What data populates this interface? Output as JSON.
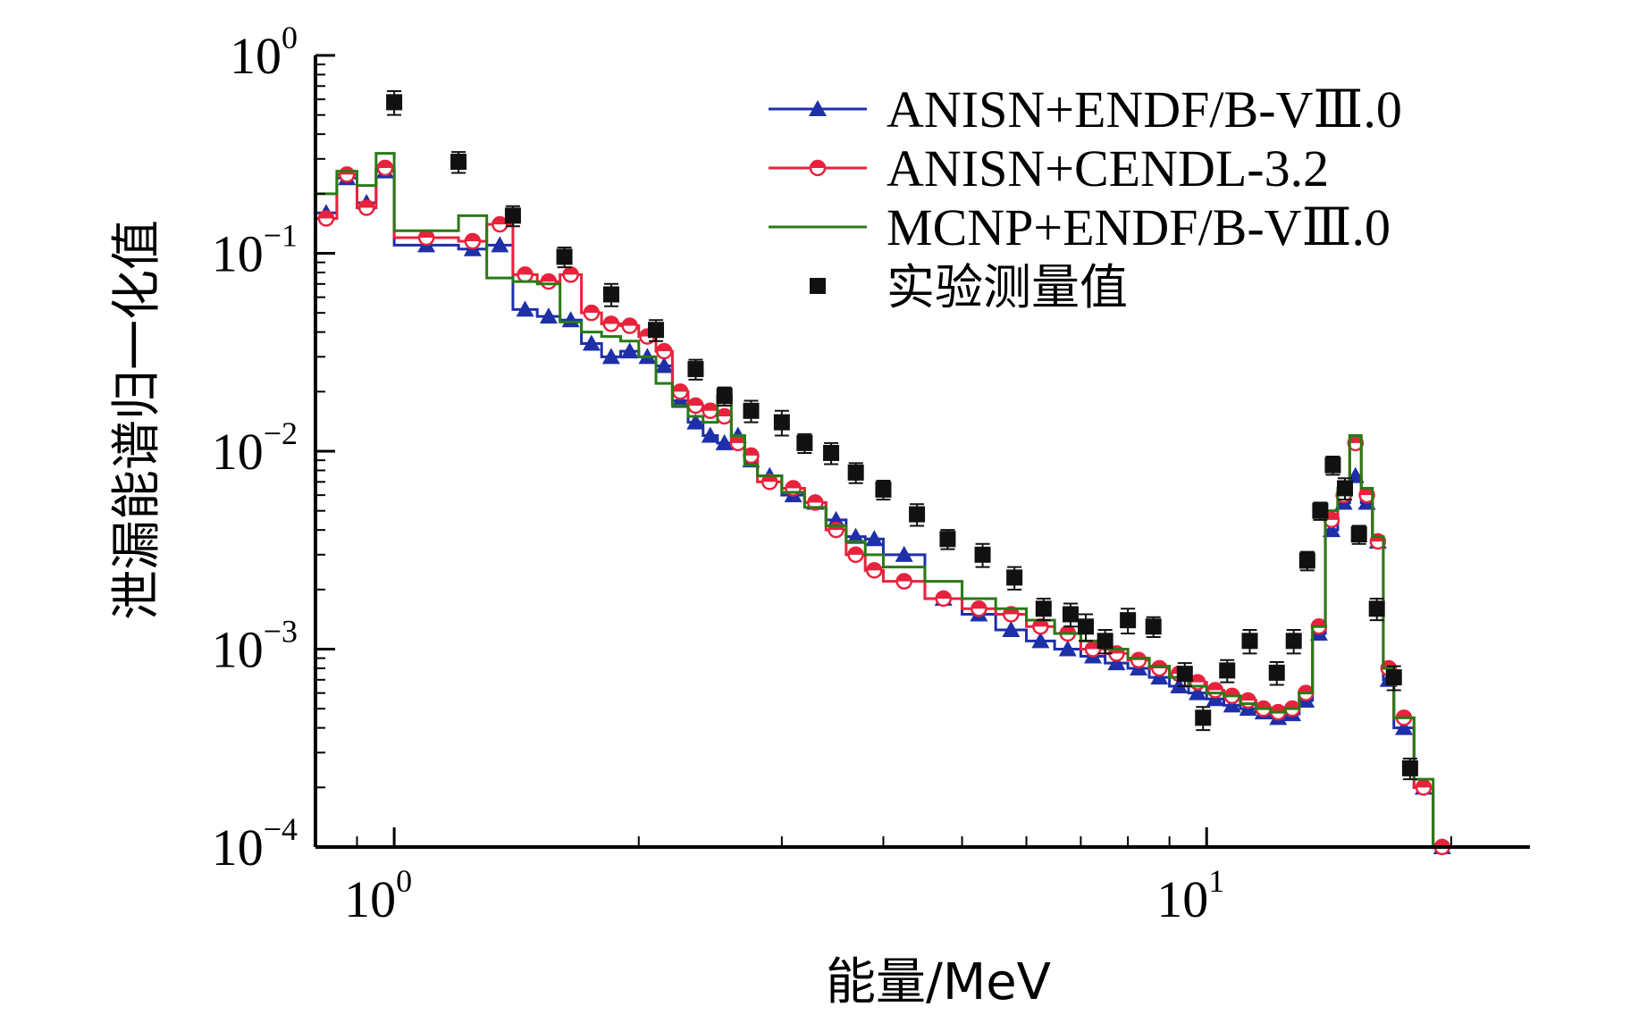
{
  "chart_data": {
    "type": "line",
    "title": "",
    "xlabel": "能量/MeV",
    "ylabel": "泄漏能谱归一化值",
    "xscale": "log",
    "yscale": "log",
    "xlim": [
      0.8,
      25
    ],
    "ylim": [
      0.0001,
      1
    ],
    "x_ticks": [
      {
        "base": "10",
        "exp": "0",
        "value": 1
      },
      {
        "base": "10",
        "exp": "1",
        "value": 10
      }
    ],
    "y_ticks": [
      {
        "base": "10",
        "exp": "0",
        "value": 1
      },
      {
        "base": "10",
        "exp": "−1",
        "value": 0.1
      },
      {
        "base": "10",
        "exp": "−2",
        "value": 0.01
      },
      {
        "base": "10",
        "exp": "−3",
        "value": 0.001
      },
      {
        "base": "10",
        "exp": "−4",
        "value": 0.0001
      }
    ],
    "legend_position": "top-right",
    "series": [
      {
        "name": "ANISN+ENDF/B-VⅢ.0",
        "color": "#1f2fa8",
        "marker": "triangle",
        "style": "step",
        "edges": [
          0.8,
          0.85,
          0.9,
          0.95,
          1.0,
          1.2,
          1.3,
          1.4,
          1.5,
          1.6,
          1.7,
          1.8,
          1.9,
          2.0,
          2.1,
          2.2,
          2.3,
          2.4,
          2.5,
          2.6,
          2.7,
          2.8,
          3.0,
          3.2,
          3.4,
          3.6,
          3.8,
          4.0,
          4.5,
          5.0,
          5.5,
          6.0,
          6.5,
          7.0,
          7.5,
          8.0,
          8.5,
          9.0,
          9.5,
          10.0,
          10.5,
          11.0,
          11.5,
          12.0,
          12.5,
          13.0,
          13.5,
          14.0,
          14.5,
          15.0,
          15.5,
          16.0,
          16.5,
          17.0,
          18.0,
          19.0,
          20.0
        ],
        "values": [
          0.16,
          0.24,
          0.18,
          0.26,
          0.11,
          0.105,
          0.11,
          0.052,
          0.048,
          0.046,
          0.035,
          0.03,
          0.032,
          0.03,
          0.027,
          0.018,
          0.014,
          0.012,
          0.011,
          0.012,
          0.009,
          0.0075,
          0.006,
          0.0055,
          0.0045,
          0.0037,
          0.0036,
          0.003,
          0.0018,
          0.0015,
          0.00125,
          0.0011,
          0.001,
          0.00092,
          0.00085,
          0.0008,
          0.00072,
          0.00065,
          0.0006,
          0.00056,
          0.00052,
          0.0005,
          0.00048,
          0.00045,
          0.00047,
          0.00055,
          0.0012,
          0.004,
          0.0055,
          0.0075,
          0.0055,
          0.0035,
          0.0007,
          0.0004,
          0.0002,
          0.0001
        ]
      },
      {
        "name": "ANISN+CENDL-3.2",
        "color": "#e8223c",
        "marker": "half-circle",
        "style": "step",
        "edges": [
          0.8,
          0.85,
          0.9,
          0.95,
          1.0,
          1.2,
          1.3,
          1.4,
          1.5,
          1.6,
          1.7,
          1.8,
          1.9,
          2.0,
          2.1,
          2.2,
          2.3,
          2.4,
          2.5,
          2.6,
          2.7,
          2.8,
          3.0,
          3.2,
          3.4,
          3.6,
          3.8,
          4.0,
          4.5,
          5.0,
          5.5,
          6.0,
          6.5,
          7.0,
          7.5,
          8.0,
          8.5,
          9.0,
          9.5,
          10.0,
          10.5,
          11.0,
          11.5,
          12.0,
          12.5,
          13.0,
          13.5,
          14.0,
          14.5,
          15.0,
          15.5,
          16.0,
          16.5,
          17.0,
          18.0,
          19.0,
          20.0
        ],
        "values": [
          0.15,
          0.25,
          0.17,
          0.27,
          0.12,
          0.115,
          0.14,
          0.078,
          0.072,
          0.078,
          0.05,
          0.044,
          0.043,
          0.038,
          0.032,
          0.02,
          0.017,
          0.016,
          0.015,
          0.011,
          0.0095,
          0.007,
          0.0065,
          0.0055,
          0.004,
          0.003,
          0.0025,
          0.0022,
          0.0018,
          0.0016,
          0.0015,
          0.0013,
          0.0012,
          0.001,
          0.00095,
          0.00088,
          0.0008,
          0.00075,
          0.00068,
          0.00062,
          0.00058,
          0.00055,
          0.0005,
          0.00048,
          0.0005,
          0.0006,
          0.0013,
          0.0045,
          0.006,
          0.011,
          0.006,
          0.0035,
          0.0008,
          0.00045,
          0.0002,
          0.0001
        ]
      },
      {
        "name": "MCNP+ENDF/B-VⅢ.0",
        "color": "#2a7a14",
        "marker": "none",
        "style": "step",
        "edges": [
          0.8,
          0.85,
          0.9,
          0.95,
          1.0,
          1.2,
          1.3,
          1.4,
          1.5,
          1.6,
          1.7,
          1.8,
          1.9,
          2.0,
          2.1,
          2.2,
          2.3,
          2.4,
          2.5,
          2.6,
          2.7,
          2.8,
          3.0,
          3.2,
          3.4,
          3.6,
          3.8,
          4.0,
          4.5,
          5.0,
          5.5,
          6.0,
          6.5,
          7.0,
          7.5,
          8.0,
          8.5,
          9.0,
          9.5,
          10.0,
          10.5,
          11.0,
          11.5,
          12.0,
          12.5,
          13.0,
          13.5,
          14.0,
          14.5,
          15.0,
          15.5,
          16.0,
          16.5,
          17.0,
          18.0,
          19.0,
          20.0
        ],
        "values": [
          0.2,
          0.26,
          0.22,
          0.32,
          0.13,
          0.155,
          0.075,
          0.072,
          0.07,
          0.045,
          0.04,
          0.038,
          0.036,
          0.03,
          0.022,
          0.017,
          0.015,
          0.014,
          0.019,
          0.012,
          0.0085,
          0.0075,
          0.0062,
          0.0052,
          0.0042,
          0.0035,
          0.003,
          0.0026,
          0.0022,
          0.0018,
          0.0016,
          0.0014,
          0.0012,
          0.0011,
          0.001,
          0.0009,
          0.00082,
          0.00072,
          0.00065,
          0.0006,
          0.00058,
          0.00053,
          0.0005,
          0.00048,
          0.0005,
          0.0006,
          0.0013,
          0.005,
          0.0065,
          0.012,
          0.0065,
          0.0037,
          0.0008,
          0.00045,
          0.00022,
          0.0001
        ]
      },
      {
        "name": "实验测量值",
        "color": "#111111",
        "marker": "square",
        "style": "scatter",
        "x": [
          1.0,
          1.2,
          1.4,
          1.62,
          1.85,
          2.1,
          2.35,
          2.55,
          2.75,
          3.0,
          3.2,
          3.45,
          3.7,
          4.0,
          4.4,
          4.8,
          5.3,
          5.8,
          6.3,
          6.8,
          7.1,
          7.5,
          8.0,
          8.6,
          9.4,
          9.9,
          10.6,
          11.3,
          12.2,
          12.8,
          13.3,
          13.8,
          14.3,
          14.8,
          15.4,
          16.2,
          17.0,
          17.8
        ],
        "y": [
          0.58,
          0.29,
          0.155,
          0.096,
          0.062,
          0.041,
          0.026,
          0.019,
          0.016,
          0.014,
          0.011,
          0.0098,
          0.0078,
          0.0064,
          0.0048,
          0.0036,
          0.003,
          0.0023,
          0.0016,
          0.0015,
          0.0013,
          0.0011,
          0.0014,
          0.0013,
          0.00075,
          0.00045,
          0.00078,
          0.0011,
          0.00076,
          0.0011,
          0.0028,
          0.005,
          0.0085,
          0.0065,
          0.0038,
          0.0016,
          0.00072,
          0.00025
        ],
        "y_err": [
          0.08,
          0.035,
          0.018,
          0.011,
          0.008,
          0.005,
          0.003,
          0.002,
          0.002,
          0.002,
          0.0012,
          0.0012,
          0.0009,
          0.0007,
          0.0006,
          0.0004,
          0.0004,
          0.0003,
          0.0002,
          0.0002,
          0.0002,
          0.00015,
          0.0002,
          0.00015,
          0.0001,
          6e-05,
          0.0001,
          0.00015,
          0.0001,
          0.00015,
          0.0003,
          0.0005,
          0.0009,
          0.0008,
          0.0004,
          0.0002,
          0.0001,
          3e-05
        ]
      }
    ]
  }
}
